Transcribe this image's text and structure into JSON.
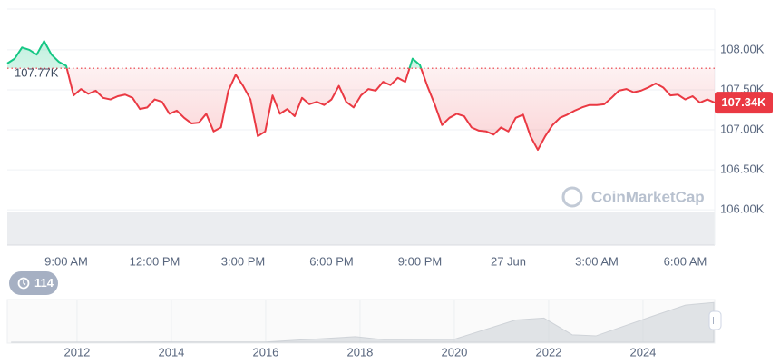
{
  "chart_data": [
    {
      "type": "line",
      "categories": [
        null,
        null,
        null,
        null,
        null,
        null,
        null,
        null,
        "9:00 AM",
        null,
        null,
        null,
        null,
        null,
        null,
        null,
        null,
        null,
        null,
        null,
        "12:00 PM",
        null,
        null,
        null,
        null,
        null,
        null,
        null,
        null,
        null,
        null,
        null,
        "3:00 PM",
        null,
        null,
        null,
        null,
        null,
        null,
        null,
        null,
        null,
        null,
        null,
        "6:00 PM",
        null,
        null,
        null,
        null,
        null,
        null,
        null,
        null,
        null,
        null,
        null,
        "9:00 PM",
        null,
        null,
        null,
        null,
        null,
        null,
        null,
        null,
        null,
        null,
        null,
        "27 Jun",
        null,
        null,
        null,
        null,
        null,
        null,
        null,
        null,
        null,
        null,
        null,
        "3:00 AM",
        null,
        null,
        null,
        null,
        null,
        null,
        null,
        null,
        null,
        null,
        null,
        "6:00 AM",
        null,
        null,
        null,
        null
      ],
      "values": [
        107830,
        107890,
        108030,
        108000,
        107940,
        108110,
        107940,
        107850,
        107800,
        107430,
        107510,
        107450,
        107490,
        107400,
        107380,
        107420,
        107440,
        107400,
        107260,
        107280,
        107380,
        107350,
        107200,
        107240,
        107150,
        107080,
        107090,
        107200,
        106980,
        107030,
        107490,
        107690,
        107550,
        107380,
        106920,
        106980,
        107430,
        107200,
        107260,
        107170,
        107400,
        107320,
        107350,
        107310,
        107380,
        107550,
        107350,
        107280,
        107430,
        107510,
        107490,
        107600,
        107560,
        107650,
        107600,
        107890,
        107810,
        107550,
        107320,
        107060,
        107150,
        107200,
        107170,
        107030,
        106990,
        106980,
        106940,
        107030,
        106980,
        107150,
        107190,
        106920,
        106750,
        106920,
        107060,
        107150,
        107190,
        107240,
        107280,
        107310,
        107310,
        107320,
        107400,
        107490,
        107510,
        107470,
        107490,
        107530,
        107580,
        107530,
        107430,
        107440,
        107380,
        107420,
        107340,
        107380,
        107340
      ],
      "color_up": "#16c784",
      "color_down": "#ea3943",
      "reference": {
        "value": 107770,
        "label": "107.77K"
      },
      "last_price": {
        "value": 107340,
        "label": "107.34K"
      },
      "ylim": [
        105990,
        108510
      ],
      "yticks": [
        {
          "value": 106000,
          "label": "106.00K"
        },
        {
          "value": 106500,
          "label": "106.50K"
        },
        {
          "value": 107000,
          "label": "107.00K"
        },
        {
          "value": 107500,
          "label": "107.50K"
        },
        {
          "value": 108000,
          "label": "108.00K"
        }
      ],
      "grid": true,
      "watermark": "CoinMarketCap"
    },
    {
      "type": "area",
      "x": [
        2010.6,
        2012.5,
        2013.9,
        2014.5,
        2016.0,
        2017.9,
        2018.5,
        2020.0,
        2021.3,
        2021.9,
        2022.5,
        2023.0,
        2024.2,
        2024.9,
        2025.5
      ],
      "values": [
        0,
        200,
        1000,
        600,
        500,
        15000,
        7000,
        8000,
        60000,
        65000,
        20000,
        17000,
        70000,
        100000,
        107000
      ],
      "xlim": [
        2010.52,
        2025.52
      ],
      "xticks": [
        2012,
        2014,
        2016,
        2018,
        2020,
        2022,
        2024
      ],
      "ylim": [
        0,
        115000
      ],
      "color": "#cfd3d8"
    }
  ],
  "history_button": {
    "label": "114"
  }
}
